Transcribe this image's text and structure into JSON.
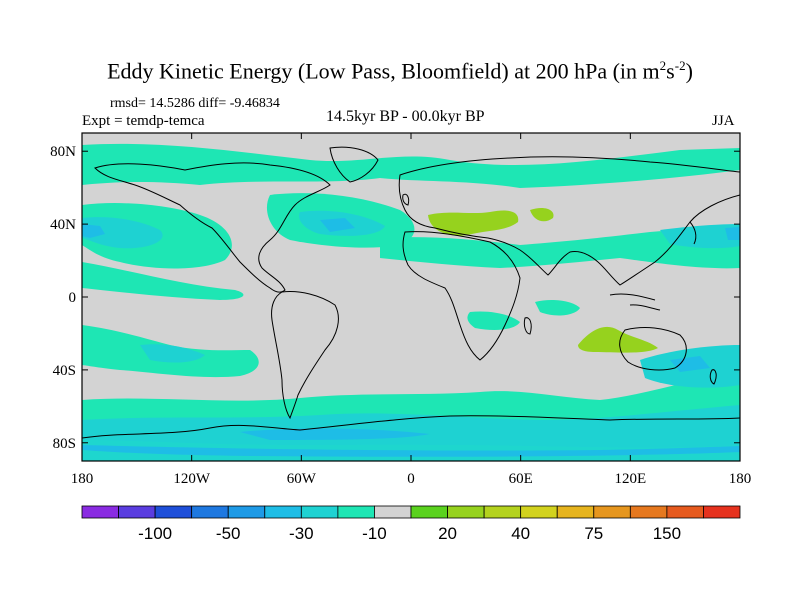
{
  "header": {
    "title": "Eddy Kinetic Energy (Low Pass, Bloomfield) at 200 hPa (in m",
    "title_sup1": "2",
    "title_mid": "s",
    "title_sup2": "-2",
    "title_end": ")",
    "stats": "rmsd= 14.5286 diff= -9.46834",
    "expt": "Expt = temdp-temca",
    "period": "14.5kyr BP - 00.0kyr BP",
    "season": "JJA"
  },
  "map": {
    "projection": "cylindrical-equidistant",
    "lon_range": [
      -180,
      180
    ],
    "lat_range": [
      -90,
      90
    ],
    "lat_ticks": [
      {
        "lat": 80,
        "label": "80N"
      },
      {
        "lat": 40,
        "label": "40N"
      },
      {
        "lat": 0,
        "label": "0"
      },
      {
        "lat": -40,
        "label": "40S"
      },
      {
        "lat": -80,
        "label": "80S"
      }
    ],
    "lon_ticks": [
      {
        "lon": -180,
        "label": "180"
      },
      {
        "lon": -120,
        "label": "120W"
      },
      {
        "lon": -60,
        "label": "60W"
      },
      {
        "lon": 0,
        "label": "0"
      },
      {
        "lon": 60,
        "label": "60E"
      },
      {
        "lon": 120,
        "label": "120E"
      },
      {
        "lon": 180,
        "label": "180"
      }
    ],
    "background_color": "#d3d3d3"
  },
  "colorbar": {
    "colors": [
      "#8a2be2",
      "#5a3de0",
      "#1e4fd9",
      "#1e78e0",
      "#1e9ae6",
      "#1ebde6",
      "#1ed2d2",
      "#1ee6b4",
      "#d3d3d3",
      "#5ad21e",
      "#96d21e",
      "#b4d21e",
      "#d2d21e",
      "#e6b41e",
      "#e6961e",
      "#e6781e",
      "#e65a1e",
      "#e6321e"
    ],
    "labels": [
      {
        "boundary": 2,
        "text": "-100"
      },
      {
        "boundary": 4,
        "text": "-50"
      },
      {
        "boundary": 6,
        "text": "-30"
      },
      {
        "boundary": 8,
        "text": "-10"
      },
      {
        "boundary": 10,
        "text": "20"
      },
      {
        "boundary": 12,
        "text": "40"
      },
      {
        "boundary": 14,
        "text": "75"
      },
      {
        "boundary": 16,
        "text": "150"
      }
    ]
  }
}
